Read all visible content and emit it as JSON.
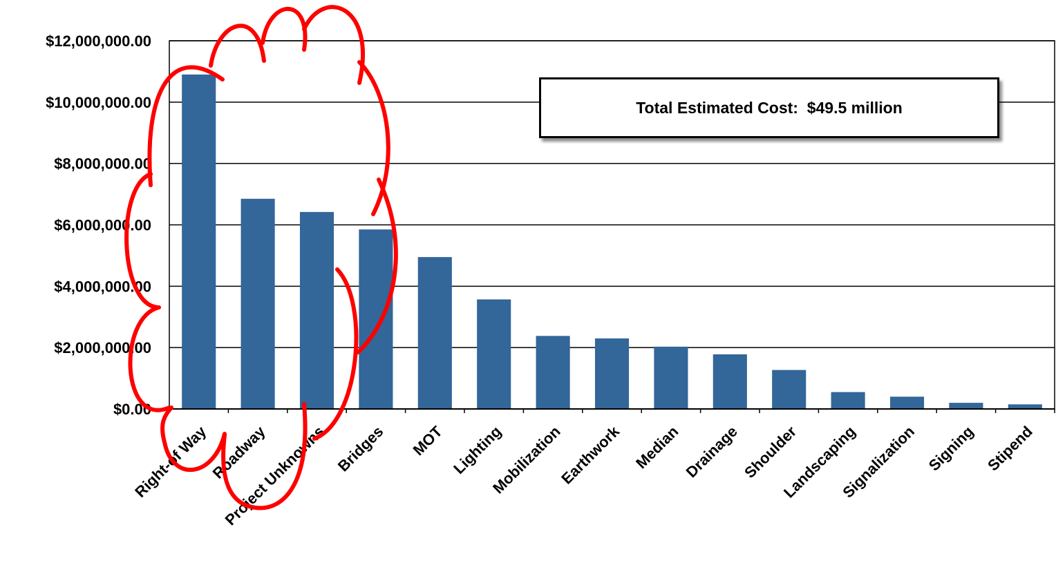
{
  "chart_data": {
    "type": "bar",
    "title": "",
    "xlabel": "",
    "ylabel": "",
    "ylim": [
      0,
      12000000
    ],
    "yticks": [
      0,
      2000000,
      4000000,
      6000000,
      8000000,
      10000000,
      12000000
    ],
    "ytick_labels": [
      "$0.00",
      "$2,000,000.00",
      "$4,000,000.00",
      "$6,000,000.00",
      "$8,000,000.00",
      "$10,000,000.00",
      "$12,000,000.00"
    ],
    "grid": true,
    "categories": [
      "Right-of Way",
      "Roadway",
      "Project Unknowns",
      "Bridges",
      "MOT",
      "Lighting",
      "Mobilization",
      "Earthwork",
      "Median",
      "Drainage",
      "Shoulder",
      "Landscaping",
      "Signalization",
      "Signing",
      "Stipend"
    ],
    "values": [
      10900000,
      6850000,
      6420000,
      5850000,
      4950000,
      3570000,
      2380000,
      2300000,
      2030000,
      1780000,
      1270000,
      550000,
      400000,
      200000,
      150000
    ],
    "bar_color": "#336699",
    "annotation": {
      "text": "Total Estimated Cost:  $49.5 million"
    },
    "highlight": {
      "shape": "cloud",
      "color": "#ff0000"
    }
  }
}
